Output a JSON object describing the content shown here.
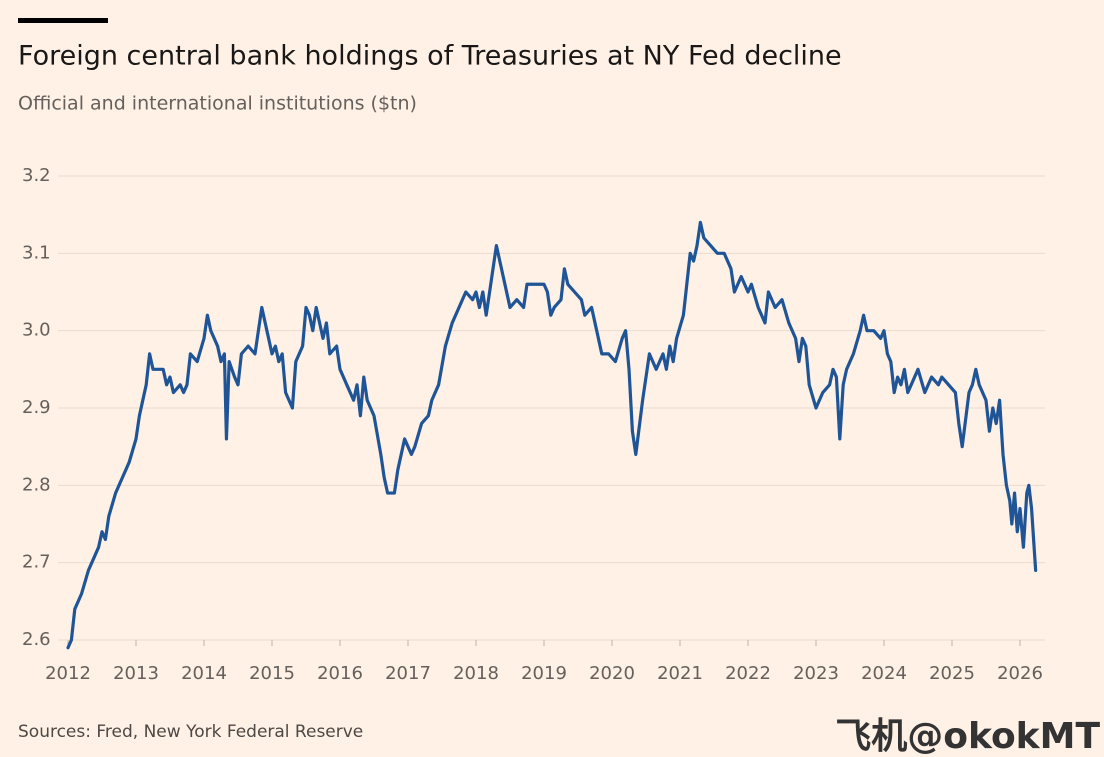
{
  "chart_data": {
    "type": "line",
    "title": "Foreign central bank holdings of Treasuries at NY Fed decline",
    "subtitle": "Official and international institutions ($tn)",
    "source": "Sources: Fred, New York Federal Reserve",
    "watermark": "飞机@okokMT",
    "x": [
      2012.0,
      2012.05,
      2012.1,
      2012.2,
      2012.3,
      2012.35,
      2012.45,
      2012.5,
      2012.55,
      2012.6,
      2012.7,
      2012.8,
      2012.9,
      2013.0,
      2013.05,
      2013.1,
      2013.15,
      2013.2,
      2013.25,
      2013.3,
      2013.4,
      2013.45,
      2013.5,
      2013.55,
      2013.65,
      2013.7,
      2013.75,
      2013.8,
      2013.9,
      2014.0,
      2014.05,
      2014.1,
      2014.2,
      2014.25,
      2014.3,
      2014.33,
      2014.37,
      2014.45,
      2014.5,
      2014.55,
      2014.65,
      2014.75,
      2014.8,
      2014.85,
      2014.95,
      2015.0,
      2015.05,
      2015.1,
      2015.15,
      2015.2,
      2015.3,
      2015.35,
      2015.45,
      2015.5,
      2015.55,
      2015.6,
      2015.65,
      2015.7,
      2015.75,
      2015.8,
      2015.85,
      2015.95,
      2016.0,
      2016.1,
      2016.2,
      2016.25,
      2016.3,
      2016.35,
      2016.4,
      2016.5,
      2016.6,
      2016.65,
      2016.7,
      2016.8,
      2016.85,
      2016.95,
      2017.05,
      2017.1,
      2017.2,
      2017.3,
      2017.35,
      2017.45,
      2017.55,
      2017.65,
      2017.75,
      2017.85,
      2017.95,
      2018.0,
      2018.05,
      2018.1,
      2018.15,
      2018.25,
      2018.3,
      2018.35,
      2018.45,
      2018.5,
      2018.6,
      2018.7,
      2018.75,
      2018.85,
      2019.0,
      2019.05,
      2019.1,
      2019.15,
      2019.25,
      2019.3,
      2019.35,
      2019.45,
      2019.55,
      2019.6,
      2019.7,
      2019.8,
      2019.85,
      2019.95,
      2020.05,
      2020.15,
      2020.2,
      2020.25,
      2020.3,
      2020.35,
      2020.45,
      2020.55,
      2020.65,
      2020.75,
      2020.8,
      2020.85,
      2020.9,
      2020.95,
      2021.05,
      2021.1,
      2021.15,
      2021.2,
      2021.25,
      2021.3,
      2021.35,
      2021.45,
      2021.55,
      2021.65,
      2021.75,
      2021.8,
      2021.9,
      2022.0,
      2022.05,
      2022.15,
      2022.25,
      2022.3,
      2022.4,
      2022.5,
      2022.6,
      2022.7,
      2022.75,
      2022.8,
      2022.85,
      2022.9,
      2023.0,
      2023.05,
      2023.1,
      2023.2,
      2023.25,
      2023.3,
      2023.35,
      2023.4,
      2023.45,
      2023.55,
      2023.65,
      2023.7,
      2023.75,
      2023.85,
      2023.95,
      2024.0,
      2024.05,
      2024.1,
      2024.15,
      2024.2,
      2024.25,
      2024.3,
      2024.35,
      2024.45,
      2024.5,
      2024.6,
      2024.7,
      2024.8,
      2024.85,
      2024.95,
      2025.05,
      2025.1,
      2025.15,
      2025.25,
      2025.3,
      2025.35,
      2025.4,
      2025.5,
      2025.55,
      2025.6,
      2025.65,
      2025.7,
      2025.75,
      2025.8,
      2025.85,
      2025.88,
      2025.92,
      2025.96,
      2026.0,
      2026.05,
      2026.1,
      2026.13,
      2026.17,
      2026.2,
      2026.23
    ],
    "series": [
      {
        "color": "#1f5597",
        "values": [
          2.59,
          2.6,
          2.64,
          2.66,
          2.69,
          2.7,
          2.72,
          2.74,
          2.73,
          2.76,
          2.79,
          2.81,
          2.83,
          2.86,
          2.89,
          2.91,
          2.93,
          2.97,
          2.95,
          2.95,
          2.95,
          2.93,
          2.94,
          2.92,
          2.93,
          2.92,
          2.93,
          2.97,
          2.96,
          2.99,
          3.02,
          3.0,
          2.98,
          2.96,
          2.97,
          2.86,
          2.96,
          2.94,
          2.93,
          2.97,
          2.98,
          2.97,
          3.0,
          3.03,
          2.99,
          2.97,
          2.98,
          2.96,
          2.97,
          2.92,
          2.9,
          2.96,
          2.98,
          3.03,
          3.02,
          3.0,
          3.03,
          3.01,
          2.99,
          3.01,
          2.97,
          2.98,
          2.95,
          2.93,
          2.91,
          2.93,
          2.89,
          2.94,
          2.91,
          2.89,
          2.84,
          2.81,
          2.79,
          2.79,
          2.82,
          2.86,
          2.84,
          2.85,
          2.88,
          2.89,
          2.91,
          2.93,
          2.98,
          3.01,
          3.03,
          3.05,
          3.04,
          3.05,
          3.03,
          3.05,
          3.02,
          3.08,
          3.11,
          3.09,
          3.05,
          3.03,
          3.04,
          3.03,
          3.06,
          3.06,
          3.06,
          3.05,
          3.02,
          3.03,
          3.04,
          3.08,
          3.06,
          3.05,
          3.04,
          3.02,
          3.03,
          2.99,
          2.97,
          2.97,
          2.96,
          2.99,
          3.0,
          2.95,
          2.87,
          2.84,
          2.91,
          2.97,
          2.95,
          2.97,
          2.95,
          2.98,
          2.96,
          2.99,
          3.02,
          3.06,
          3.1,
          3.09,
          3.11,
          3.14,
          3.12,
          3.11,
          3.1,
          3.1,
          3.08,
          3.05,
          3.07,
          3.05,
          3.06,
          3.03,
          3.01,
          3.05,
          3.03,
          3.04,
          3.01,
          2.99,
          2.96,
          2.99,
          2.98,
          2.93,
          2.9,
          2.91,
          2.92,
          2.93,
          2.95,
          2.94,
          2.86,
          2.93,
          2.95,
          2.97,
          3.0,
          3.02,
          3.0,
          3.0,
          2.99,
          3.0,
          2.97,
          2.96,
          2.92,
          2.94,
          2.93,
          2.95,
          2.92,
          2.94,
          2.95,
          2.92,
          2.94,
          2.93,
          2.94,
          2.93,
          2.92,
          2.88,
          2.85,
          2.92,
          2.93,
          2.95,
          2.93,
          2.91,
          2.87,
          2.9,
          2.88,
          2.91,
          2.84,
          2.8,
          2.78,
          2.75,
          2.79,
          2.74,
          2.77,
          2.72,
          2.79,
          2.8,
          2.77,
          2.73,
          2.69
        ]
      }
    ],
    "xlim": [
      2011.95,
      2026.35
    ],
    "xticks": [
      2012,
      2013,
      2014,
      2015,
      2016,
      2017,
      2018,
      2019,
      2020,
      2021,
      2022,
      2023,
      2024,
      2025,
      2026
    ],
    "ylim": [
      2.6,
      3.2
    ],
    "yticks": [
      2.6,
      2.7,
      2.8,
      2.9,
      {
        "value": 3,
        "label": "3.0"
      },
      3.1,
      3.2
    ],
    "grid": true
  }
}
